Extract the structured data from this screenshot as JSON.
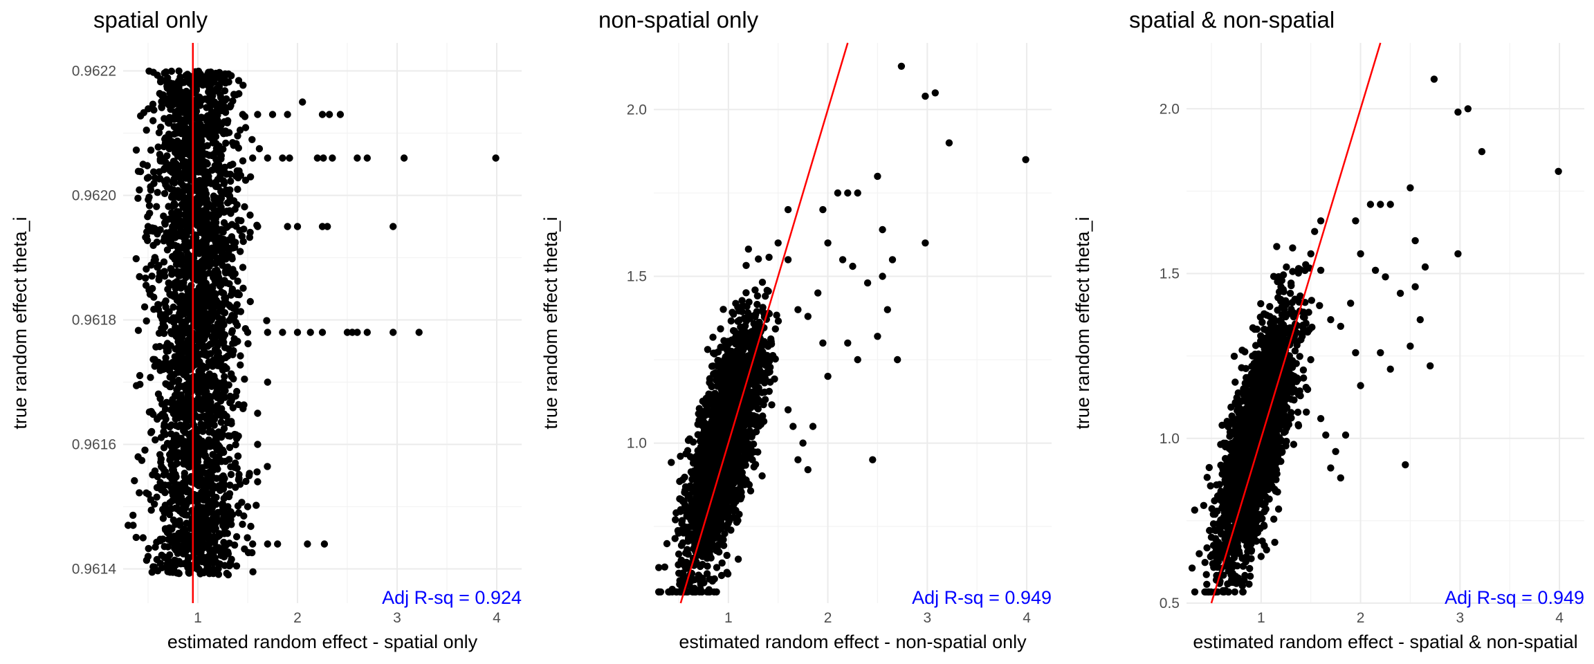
{
  "chart_data": [
    {
      "type": "scatter",
      "title": "spatial only",
      "xlabel": "estimated random effect - spatial only",
      "ylabel": "true random effect theta_i",
      "xlim": [
        0.25,
        4.25
      ],
      "ylim": [
        0.961345,
        0.962245
      ],
      "x_ticks": [
        1,
        2,
        3,
        4
      ],
      "x_tick_labels": [
        "1",
        "2",
        "3",
        "4"
      ],
      "y_ticks": [
        0.9614,
        0.9616,
        0.9618,
        0.962,
        0.9622
      ],
      "y_tick_labels": [
        "0.9614",
        "0.9616",
        "0.9618",
        "0.9620",
        "0.9622"
      ],
      "grid": true,
      "reference_line": {
        "type": "vertical",
        "x": 0.95,
        "color": "#ff0000"
      },
      "annotation": {
        "text": "Adj R-sq = 0.924",
        "color": "#0000ff",
        "position": "bottom-right"
      },
      "cloud": {
        "x_mean": 0.98,
        "x_sd": 0.22,
        "x_min": 0.3,
        "n": 2600
      },
      "points": [
        [
          1.2,
          0.96212
        ],
        [
          1.3,
          0.96212
        ],
        [
          1.45,
          0.96213
        ],
        [
          1.6,
          0.96213
        ],
        [
          1.75,
          0.96213
        ],
        [
          1.9,
          0.96213
        ],
        [
          2.05,
          0.96215
        ],
        [
          2.25,
          0.96213
        ],
        [
          2.32,
          0.96213
        ],
        [
          2.43,
          0.96213
        ],
        [
          1.35,
          0.96205
        ],
        [
          1.55,
          0.96206
        ],
        [
          1.7,
          0.96206
        ],
        [
          1.85,
          0.96206
        ],
        [
          1.92,
          0.96206
        ],
        [
          2.2,
          0.96206
        ],
        [
          2.26,
          0.96206
        ],
        [
          2.35,
          0.96206
        ],
        [
          2.6,
          0.96206
        ],
        [
          2.7,
          0.96206
        ],
        [
          3.07,
          0.96206
        ],
        [
          3.99,
          0.96206
        ],
        [
          1.3,
          0.96195
        ],
        [
          1.6,
          0.96195
        ],
        [
          1.9,
          0.96195
        ],
        [
          2.0,
          0.96195
        ],
        [
          2.25,
          0.96195
        ],
        [
          2.3,
          0.96195
        ],
        [
          2.96,
          0.96195
        ],
        [
          1.5,
          0.96178
        ],
        [
          1.7,
          0.96178
        ],
        [
          1.85,
          0.96178
        ],
        [
          2.0,
          0.96178
        ],
        [
          2.13,
          0.96178
        ],
        [
          2.25,
          0.96178
        ],
        [
          2.5,
          0.96178
        ],
        [
          2.55,
          0.96178
        ],
        [
          2.6,
          0.96178
        ],
        [
          2.7,
          0.96178
        ],
        [
          2.96,
          0.96178
        ],
        [
          3.22,
          0.96178
        ],
        [
          1.55,
          0.96144
        ],
        [
          1.7,
          0.96144
        ],
        [
          1.8,
          0.96144
        ],
        [
          2.1,
          0.96144
        ],
        [
          2.27,
          0.96144
        ],
        [
          0.55,
          0.96212
        ],
        [
          0.45,
          0.96205
        ],
        [
          0.5,
          0.96195
        ],
        [
          0.4,
          0.96158
        ],
        [
          0.3,
          0.96147
        ],
        [
          0.35,
          0.96147
        ],
        [
          0.45,
          0.96145
        ],
        [
          0.5,
          0.96142
        ],
        [
          1.6,
          0.96154
        ],
        [
          1.5,
          0.9615
        ],
        [
          1.6,
          0.9616
        ],
        [
          1.6,
          0.96165
        ],
        [
          1.7,
          0.9617
        ]
      ]
    },
    {
      "type": "scatter",
      "title": "non-spatial only",
      "xlabel": "estimated random effect - non-spatial only",
      "ylabel": "true random effect theta_i",
      "xlim": [
        0.25,
        4.25
      ],
      "ylim": [
        0.52,
        2.2
      ],
      "x_ticks": [
        1,
        2,
        3,
        4
      ],
      "x_tick_labels": [
        "1",
        "2",
        "3",
        "4"
      ],
      "y_ticks": [
        1.0,
        1.5,
        2.0
      ],
      "y_tick_labels": [
        "1.0",
        "1.5",
        "2.0"
      ],
      "grid": true,
      "reference_line": {
        "type": "identity",
        "slope": 1,
        "intercept": 0,
        "color": "#ff0000"
      },
      "annotation": {
        "text": "Adj R-sq = 0.949",
        "color": "#0000ff",
        "position": "bottom-right"
      },
      "cloud": {
        "x_mean": 0.95,
        "x_sd": 0.19,
        "y_intercept": 0.32,
        "y_slope": 0.7,
        "y_sd": 0.13,
        "n": 2600
      },
      "points": [
        [
          2.74,
          2.13
        ],
        [
          2.98,
          2.04
        ],
        [
          3.08,
          2.05
        ],
        [
          3.22,
          1.9
        ],
        [
          3.99,
          1.85
        ],
        [
          2.98,
          1.6
        ],
        [
          2.5,
          1.8
        ],
        [
          2.7,
          1.25
        ],
        [
          2.45,
          0.95
        ],
        [
          2.55,
          1.5
        ],
        [
          2.6,
          1.4
        ],
        [
          2.4,
          1.48
        ],
        [
          2.2,
          1.3
        ],
        [
          2.3,
          1.25
        ],
        [
          2.5,
          1.32
        ],
        [
          2.65,
          1.55
        ],
        [
          2.55,
          1.64
        ],
        [
          2.2,
          1.75
        ],
        [
          2.3,
          1.75
        ],
        [
          2.1,
          1.75
        ],
        [
          1.95,
          1.7
        ],
        [
          2.0,
          1.6
        ],
        [
          1.9,
          1.45
        ],
        [
          1.8,
          1.38
        ],
        [
          1.7,
          1.4
        ],
        [
          2.15,
          1.55
        ],
        [
          2.25,
          1.53
        ],
        [
          1.6,
          1.7
        ],
        [
          1.6,
          1.55
        ],
        [
          1.5,
          1.6
        ],
        [
          1.85,
          1.05
        ],
        [
          1.75,
          1.0
        ],
        [
          1.7,
          0.95
        ],
        [
          1.8,
          0.92
        ],
        [
          1.65,
          1.05
        ],
        [
          1.6,
          1.1
        ],
        [
          2.0,
          1.2
        ],
        [
          1.95,
          1.3
        ],
        [
          0.55,
          0.6
        ],
        [
          0.5,
          0.73
        ],
        [
          0.52,
          0.8
        ]
      ]
    },
    {
      "type": "scatter",
      "title": "spatial & non-spatial",
      "xlabel": "estimated random effect - spatial & non-spatial",
      "ylabel": "true random effect theta_i",
      "xlim": [
        0.25,
        4.25
      ],
      "ylim": [
        0.5,
        2.2
      ],
      "x_ticks": [
        1,
        2,
        3,
        4
      ],
      "x_tick_labels": [
        "1",
        "2",
        "3",
        "4"
      ],
      "y_ticks": [
        0.5,
        1.0,
        1.5,
        2.0
      ],
      "y_tick_labels": [
        "0.5",
        "1.0",
        "1.5",
        "2.0"
      ],
      "grid": true,
      "reference_line": {
        "type": "identity",
        "slope": 1,
        "intercept": 0,
        "color": "#ff0000"
      },
      "annotation": {
        "text": "Adj R-sq = 0.949",
        "color": "#0000ff",
        "position": "bottom-right"
      },
      "cloud": {
        "x_mean": 0.95,
        "x_sd": 0.19,
        "y_intercept": 0.32,
        "y_slope": 0.7,
        "y_sd": 0.13,
        "n": 2600
      },
      "points": [
        [
          2.74,
          2.09
        ],
        [
          2.98,
          1.99
        ],
        [
          3.08,
          2.0
        ],
        [
          3.22,
          1.87
        ],
        [
          3.99,
          1.81
        ],
        [
          2.98,
          1.56
        ],
        [
          2.5,
          1.76
        ],
        [
          2.7,
          1.22
        ],
        [
          2.45,
          0.92
        ],
        [
          2.55,
          1.46
        ],
        [
          2.6,
          1.36
        ],
        [
          2.4,
          1.44
        ],
        [
          2.2,
          1.26
        ],
        [
          2.3,
          1.21
        ],
        [
          2.5,
          1.28
        ],
        [
          2.65,
          1.52
        ],
        [
          2.55,
          1.6
        ],
        [
          2.2,
          1.71
        ],
        [
          2.3,
          1.71
        ],
        [
          2.1,
          1.71
        ],
        [
          1.95,
          1.66
        ],
        [
          2.0,
          1.56
        ],
        [
          1.9,
          1.41
        ],
        [
          1.8,
          1.34
        ],
        [
          1.7,
          1.36
        ],
        [
          2.15,
          1.51
        ],
        [
          2.25,
          1.49
        ],
        [
          1.6,
          1.66
        ],
        [
          1.6,
          1.51
        ],
        [
          1.5,
          1.56
        ],
        [
          1.85,
          1.01
        ],
        [
          1.75,
          0.96
        ],
        [
          1.7,
          0.91
        ],
        [
          1.8,
          0.88
        ],
        [
          1.65,
          1.01
        ],
        [
          1.6,
          1.06
        ],
        [
          2.0,
          1.16
        ],
        [
          1.95,
          1.26
        ],
        [
          0.55,
          0.57
        ],
        [
          0.5,
          0.7
        ],
        [
          0.52,
          0.77
        ]
      ]
    }
  ]
}
